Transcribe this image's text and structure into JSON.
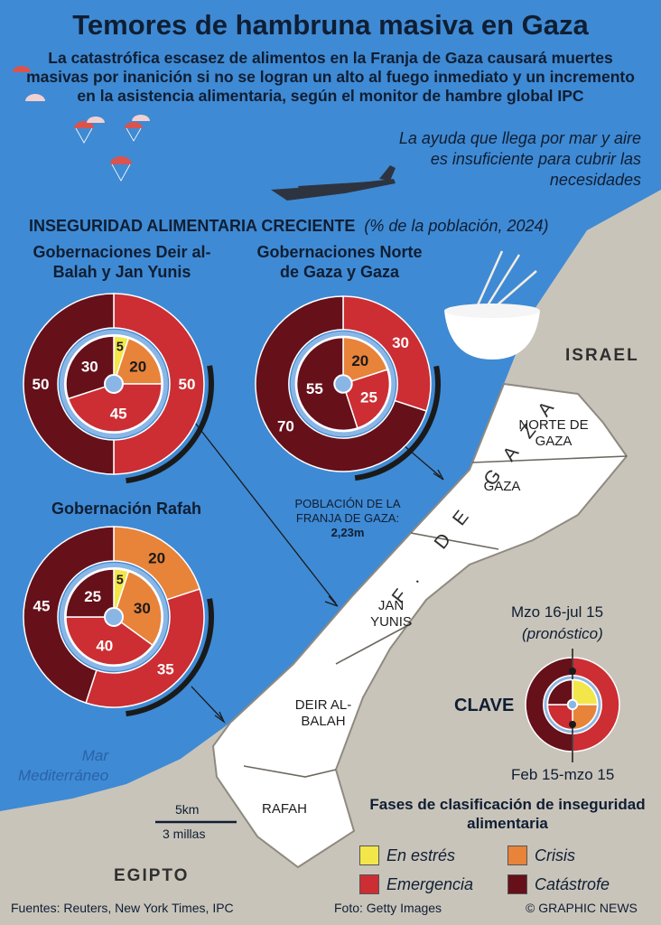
{
  "title": "Temores de hambruna masiva en Gaza",
  "subtitle": "La catastrófica escasez de alimentos en la Franja de Gaza causará muertes masivas por inanición si no se logran un alto al fuego  inmediato y un incremento en la asistencia alimentaria, según el monitor de hambre global IPC",
  "aid_note": "La ayuda que llega por mar y aire es insuficiente para cubrir las necesidades",
  "section_title": "INSEGURIDAD ALIMENTARIA CRECIENTE",
  "section_unit": "(%  de la población, 2024)",
  "colors": {
    "En estrés": "#f2e64a",
    "Crisis": "#e8833a",
    "Emergencia": "#cc2e33",
    "Catástrofe": "#66101a",
    "sea": "#3f8ad4",
    "land": "#c9c4ba",
    "gaza_strip": "#ffffff"
  },
  "chart_data": [
    {
      "type": "pie",
      "region": "Gobernaciones Deir al-Balah y Jan Yunis",
      "categories": [
        "En estrés",
        "Crisis",
        "Emergencia",
        "Catástrofe"
      ],
      "series": [
        {
          "name": "Feb 15-mzo 15",
          "values": [
            5,
            20,
            45,
            30
          ]
        },
        {
          "name": "Mzo 16-jul 15",
          "values": [
            0,
            0,
            50,
            50
          ]
        }
      ]
    },
    {
      "type": "pie",
      "region": "Gobernaciones Norte de Gaza y Gaza",
      "categories": [
        "En estrés",
        "Crisis",
        "Emergencia",
        "Catástrofe"
      ],
      "series": [
        {
          "name": "Feb 15-mzo 15",
          "values": [
            0,
            20,
            25,
            55
          ]
        },
        {
          "name": "Mzo 16-jul 15",
          "values": [
            0,
            0,
            30,
            70
          ]
        }
      ]
    },
    {
      "type": "pie",
      "region": "Gobernación Rafah",
      "categories": [
        "En estrés",
        "Crisis",
        "Emergencia",
        "Catástrofe"
      ],
      "series": [
        {
          "name": "Feb 15-mzo 15",
          "values": [
            5,
            30,
            40,
            25
          ]
        },
        {
          "name": "Mzo 16-jul 15",
          "values": [
            0,
            20,
            35,
            45
          ]
        }
      ]
    }
  ],
  "population": {
    "label": "POBLACIÓN DE LA FRANJA DE GAZA:",
    "value": "2,23m"
  },
  "map_labels": {
    "israel": "ISRAEL",
    "egipto": "EGIPTO",
    "sea": "Mar Mediterráneo",
    "norte_de_gaza": "NORTE DE GAZA",
    "gaza": "GAZA",
    "jan_yunis": "JAN YUNIS",
    "deir_al_balah": "DEIR AL-BALAH",
    "rafah": "RAFAH",
    "franja": "F. DE GAZA"
  },
  "key": {
    "title": "CLAVE",
    "outer": "Mzo 16-jul 15",
    "outer_note": "(pronóstico)",
    "inner": "Feb 15-mzo 15"
  },
  "phases_title": "Fases de clasificación de inseguridad alimentaria",
  "legend": [
    "En estrés",
    "Crisis",
    "Emergencia",
    "Catástrofe"
  ],
  "scale": {
    "km": "5km",
    "miles": "3 millas"
  },
  "icons": [
    "parachute-icon",
    "aircraft-icon",
    "wheat-bowl-icon"
  ],
  "footer": {
    "sources": "Fuentes: Reuters, New York Times, IPC",
    "photo": "Foto: Getty Images",
    "credit": "© GRAPHIC NEWS"
  }
}
